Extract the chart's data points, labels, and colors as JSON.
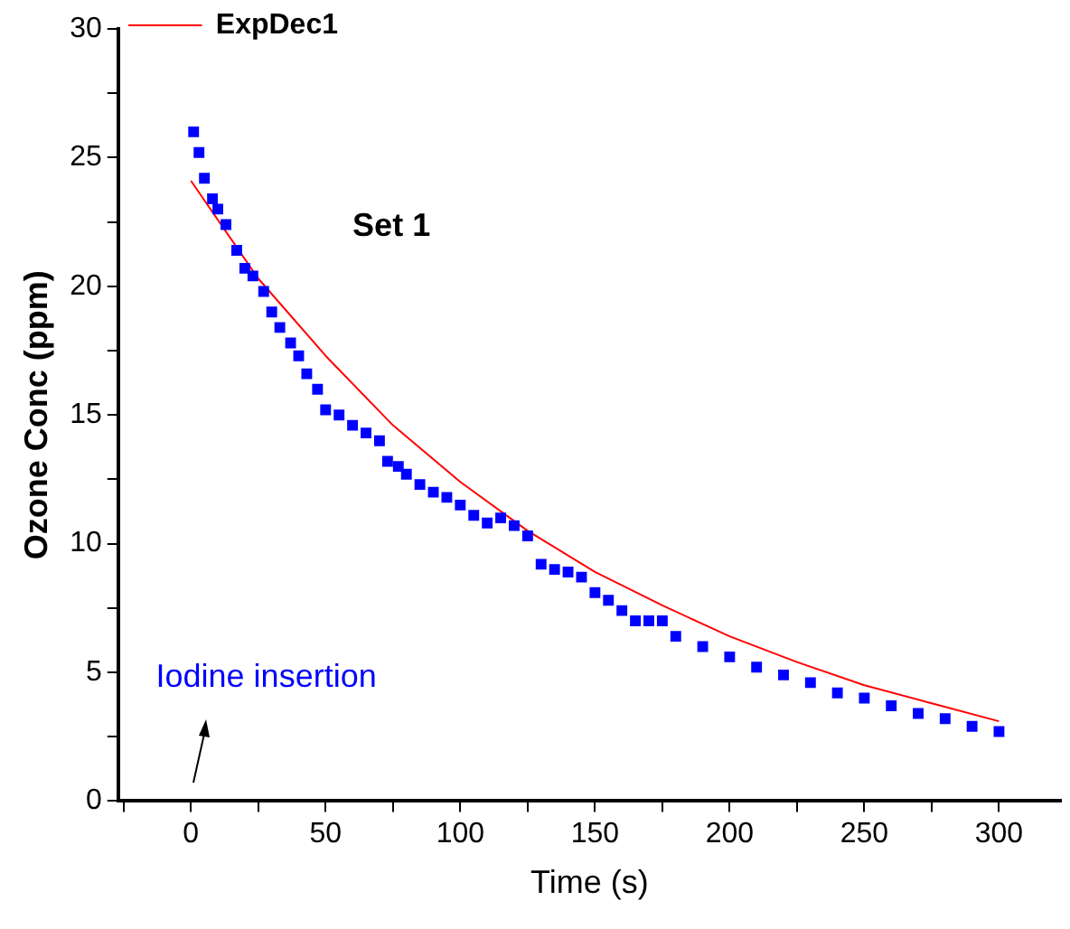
{
  "chart_data": {
    "type": "scatter",
    "xlabel": "Time (s)",
    "ylabel": "Ozone Conc (ppm)",
    "xlim": [
      -27,
      323
    ],
    "xticks": [
      {
        "value": -25,
        "label": null
      },
      0,
      {
        "value": 25,
        "label": null
      },
      50,
      {
        "value": 75,
        "label": null
      },
      100,
      {
        "value": 125,
        "label": null
      },
      150,
      {
        "value": 175,
        "label": null
      },
      200,
      {
        "value": 225,
        "label": null
      },
      250,
      {
        "value": 275,
        "label": null
      },
      300
    ],
    "ylim": [
      0,
      30
    ],
    "yticks": [
      0,
      {
        "value": 2.5,
        "label": null
      },
      5,
      {
        "value": 7.5,
        "label": null
      },
      10,
      {
        "value": 12.5,
        "label": null
      },
      15,
      {
        "value": 17.5,
        "label": null
      },
      20,
      {
        "value": 22.5,
        "label": null
      },
      25,
      {
        "value": 27.5,
        "label": null
      },
      30
    ],
    "grid": false,
    "legend": "top left",
    "marker": "square",
    "annotations": [
      "Set 1",
      "Iodine insertion"
    ],
    "series": [
      {
        "color": "#0000ff",
        "x": [
          1,
          3,
          5,
          8,
          10,
          13,
          17,
          20,
          23,
          27,
          30,
          33,
          37,
          40,
          43,
          47,
          50,
          55,
          60,
          65,
          70,
          73,
          77,
          80,
          85,
          90,
          95,
          100,
          105,
          110,
          115,
          120,
          125,
          130,
          135,
          140,
          145,
          150,
          155,
          160,
          165,
          170,
          175,
          180,
          190,
          200,
          210,
          220,
          230,
          240,
          250,
          260,
          270,
          280,
          290,
          300
        ],
        "values": [
          26.0,
          25.2,
          24.2,
          23.4,
          23.0,
          22.4,
          21.4,
          20.7,
          20.4,
          19.8,
          19.0,
          18.4,
          17.8,
          17.3,
          16.6,
          16.0,
          15.2,
          15.0,
          14.6,
          14.3,
          14.0,
          13.2,
          13.0,
          12.7,
          12.3,
          12.0,
          11.8,
          11.5,
          11.1,
          10.8,
          11.0,
          10.7,
          10.3,
          9.2,
          9.0,
          8.9,
          8.7,
          8.1,
          7.8,
          7.4,
          7.0,
          7.0,
          7.0,
          6.4,
          6.0,
          5.6,
          5.2,
          4.9,
          4.6,
          4.2,
          4.0,
          3.7,
          3.4,
          3.2,
          2.9,
          2.7
        ]
      },
      {
        "type": "line",
        "name": "ExpDec1",
        "color": "#ff0000",
        "marker": "none",
        "x": [
          0,
          25,
          50,
          75,
          100,
          125,
          150,
          175,
          200,
          225,
          250,
          275,
          300
        ],
        "values": [
          24.1,
          20.3,
          17.3,
          14.6,
          12.4,
          10.5,
          8.9,
          7.6,
          6.4,
          5.4,
          4.5,
          3.8,
          3.1
        ]
      }
    ]
  }
}
